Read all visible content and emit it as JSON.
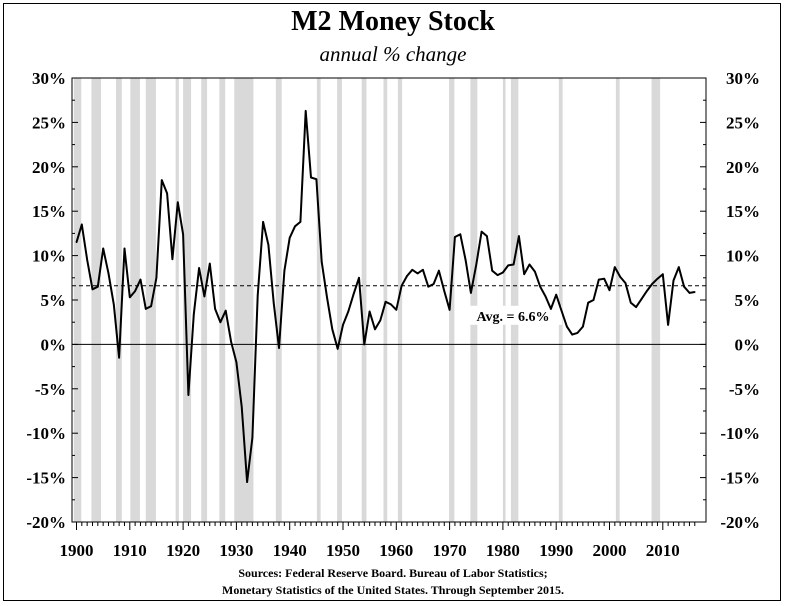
{
  "title": "M2 Money Stock",
  "subtitle": "annual % change",
  "sources": {
    "line1": "Sources: Federal Reserve Board. Bureau of Labor Statistics;",
    "line2": "Monetary Statistics of the United States. Through September 2015."
  },
  "colors": {
    "line": "#000000",
    "recession": "#d9d9d9",
    "axis": "#000000"
  },
  "chart_data": {
    "type": "line",
    "title": "M2 Money Stock",
    "subtitle": "annual % change",
    "xlabel": "",
    "ylabel": "",
    "xlim": [
      1900,
      2016
    ],
    "ylim": [
      -20,
      30
    ],
    "x_ticks": [
      1900,
      1910,
      1920,
      1930,
      1940,
      1950,
      1960,
      1970,
      1980,
      1990,
      2000,
      2010
    ],
    "y_ticks": [
      -20,
      -15,
      -10,
      -5,
      0,
      5,
      10,
      15,
      20,
      25,
      30
    ],
    "y_tick_labels": [
      "-20%",
      "-15%",
      "-10%",
      "-5%",
      "0%",
      "5%",
      "10%",
      "15%",
      "20%",
      "25%",
      "30%"
    ],
    "grid": false,
    "y_axis_both_sides": true,
    "series": [
      {
        "values": [
          [
            1900,
            11.5
          ],
          [
            1901,
            13.5
          ],
          [
            1902,
            9.5
          ],
          [
            1903,
            6.2
          ],
          [
            1904,
            6.5
          ],
          [
            1905,
            10.8
          ],
          [
            1906,
            8.0
          ],
          [
            1907,
            4.5
          ],
          [
            1908,
            -1.5
          ],
          [
            1909,
            10.8
          ],
          [
            1910,
            5.3
          ],
          [
            1911,
            6.0
          ],
          [
            1912,
            7.3
          ],
          [
            1913,
            4.0
          ],
          [
            1914,
            4.3
          ],
          [
            1915,
            7.5
          ],
          [
            1916,
            18.5
          ],
          [
            1917,
            17.0
          ],
          [
            1918,
            9.6
          ],
          [
            1919,
            16.0
          ],
          [
            1920,
            12.4
          ],
          [
            1921,
            -5.7
          ],
          [
            1922,
            3.4
          ],
          [
            1923,
            8.6
          ],
          [
            1924,
            5.4
          ],
          [
            1925,
            9.1
          ],
          [
            1926,
            4.0
          ],
          [
            1927,
            2.5
          ],
          [
            1928,
            3.8
          ],
          [
            1929,
            0.3
          ],
          [
            1930,
            -2.0
          ],
          [
            1931,
            -7.0
          ],
          [
            1932,
            -15.5
          ],
          [
            1933,
            -10.5
          ],
          [
            1934,
            5.5
          ],
          [
            1935,
            13.8
          ],
          [
            1936,
            11.2
          ],
          [
            1937,
            4.7
          ],
          [
            1938,
            -0.4
          ],
          [
            1939,
            8.3
          ],
          [
            1940,
            12.0
          ],
          [
            1941,
            13.3
          ],
          [
            1942,
            13.8
          ],
          [
            1943,
            26.3
          ],
          [
            1944,
            18.8
          ],
          [
            1945,
            18.6
          ],
          [
            1946,
            9.3
          ],
          [
            1947,
            5.3
          ],
          [
            1948,
            1.7
          ],
          [
            1949,
            -0.5
          ],
          [
            1950,
            2.2
          ],
          [
            1951,
            3.7
          ],
          [
            1952,
            5.7
          ],
          [
            1953,
            7.5
          ],
          [
            1954,
            0.0
          ],
          [
            1955,
            3.7
          ],
          [
            1956,
            1.7
          ],
          [
            1957,
            2.7
          ],
          [
            1958,
            4.8
          ],
          [
            1959,
            4.5
          ],
          [
            1960,
            3.9
          ],
          [
            1961,
            6.6
          ],
          [
            1962,
            7.7
          ],
          [
            1963,
            8.4
          ],
          [
            1964,
            8.0
          ],
          [
            1965,
            8.4
          ],
          [
            1966,
            6.5
          ],
          [
            1967,
            6.8
          ],
          [
            1968,
            8.3
          ],
          [
            1969,
            6.0
          ],
          [
            1970,
            3.9
          ],
          [
            1971,
            12.1
          ],
          [
            1972,
            12.4
          ],
          [
            1973,
            9.5
          ],
          [
            1974,
            5.8
          ],
          [
            1975,
            9.0
          ],
          [
            1976,
            12.7
          ],
          [
            1977,
            12.2
          ],
          [
            1978,
            8.3
          ],
          [
            1979,
            7.8
          ],
          [
            1980,
            8.1
          ],
          [
            1981,
            8.9
          ],
          [
            1982,
            9.0
          ],
          [
            1983,
            12.2
          ],
          [
            1984,
            7.9
          ],
          [
            1985,
            9.0
          ],
          [
            1986,
            8.2
          ],
          [
            1987,
            6.5
          ],
          [
            1988,
            5.4
          ],
          [
            1989,
            4.0
          ],
          [
            1990,
            5.6
          ],
          [
            1991,
            3.8
          ],
          [
            1992,
            2.0
          ],
          [
            1993,
            1.1
          ],
          [
            1994,
            1.3
          ],
          [
            1995,
            2.0
          ],
          [
            1996,
            4.7
          ],
          [
            1997,
            5.0
          ],
          [
            1998,
            7.3
          ],
          [
            1999,
            7.4
          ],
          [
            2000,
            6.1
          ],
          [
            2001,
            8.7
          ],
          [
            2002,
            7.6
          ],
          [
            2003,
            6.9
          ],
          [
            2004,
            4.7
          ],
          [
            2005,
            4.2
          ],
          [
            2006,
            5.1
          ],
          [
            2007,
            6.0
          ],
          [
            2008,
            6.8
          ],
          [
            2009,
            7.4
          ],
          [
            2010,
            7.9
          ],
          [
            2011,
            2.2
          ],
          [
            2012,
            7.2
          ],
          [
            2013,
            8.7
          ],
          [
            2014,
            6.5
          ],
          [
            2015,
            5.8
          ],
          [
            2016,
            5.9
          ]
        ]
      }
    ],
    "average": {
      "value": 6.6,
      "label": "Avg. = 6.6%",
      "style": "dashed"
    },
    "recessions": [
      [
        1899.5,
        1900.9
      ],
      [
        1902.8,
        1904.6
      ],
      [
        1907.4,
        1908.5
      ],
      [
        1910.1,
        1911.9
      ],
      [
        1913.0,
        1914.9
      ],
      [
        1918.6,
        1919.2
      ],
      [
        1920.0,
        1921.5
      ],
      [
        1923.4,
        1924.5
      ],
      [
        1926.8,
        1927.9
      ],
      [
        1929.6,
        1933.2
      ],
      [
        1937.4,
        1938.5
      ],
      [
        1945.1,
        1945.8
      ],
      [
        1948.9,
        1949.8
      ],
      [
        1953.5,
        1954.4
      ],
      [
        1957.6,
        1958.3
      ],
      [
        1960.3,
        1961.1
      ],
      [
        1969.9,
        1970.9
      ],
      [
        1973.9,
        1975.2
      ],
      [
        1980.0,
        1980.5
      ],
      [
        1981.5,
        1982.9
      ],
      [
        1990.5,
        1991.2
      ],
      [
        2001.2,
        2001.9
      ],
      [
        2007.9,
        2009.5
      ]
    ]
  }
}
